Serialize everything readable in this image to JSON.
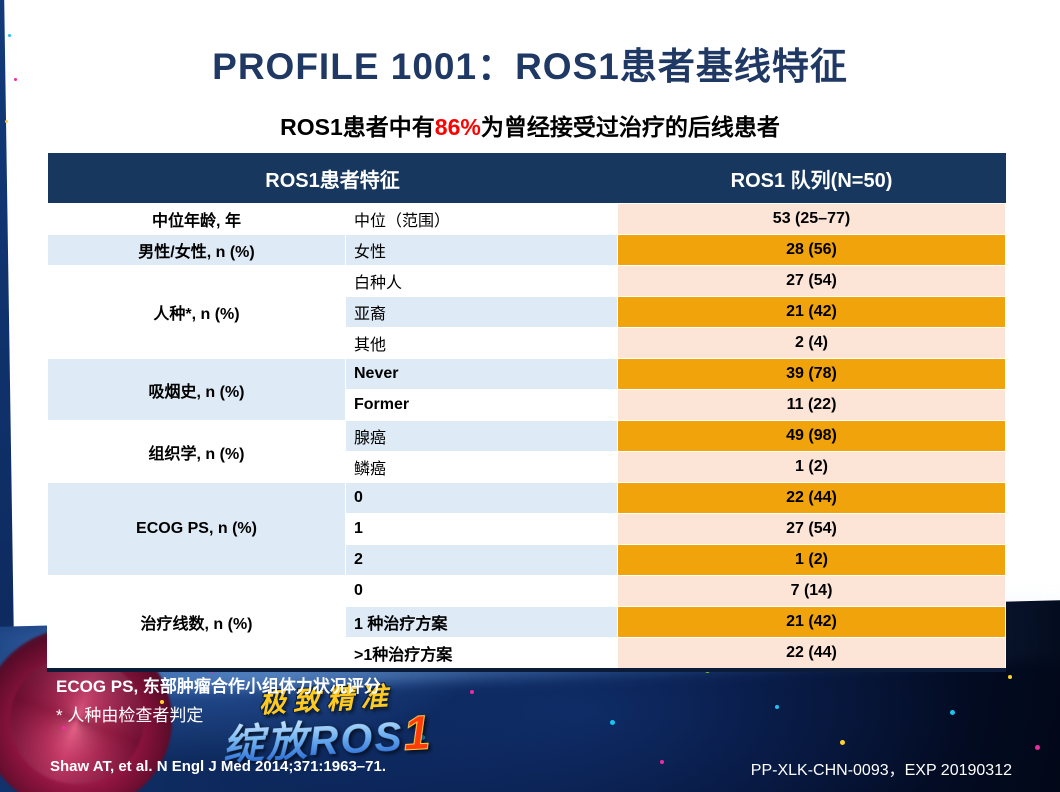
{
  "slide": {
    "title": "PROFILE 1001：ROS1患者基线特征",
    "subtitle": {
      "prefix": "ROS1患者中有",
      "highlight": "86%",
      "suffix": "为曾经接受过治疗的后线患者"
    }
  },
  "table": {
    "header": [
      "ROS1患者特征",
      "ROS1 队列(N=50)"
    ],
    "groups": [
      {
        "category": "中位年龄, 年",
        "rows": [
          {
            "label": "中位（范围）",
            "value": "53 (25–77)",
            "bold": false
          }
        ]
      },
      {
        "category": "男性/女性, n (%)",
        "rows": [
          {
            "label": "女性",
            "value": "28 (56)",
            "bold": false
          }
        ]
      },
      {
        "category": "人种*, n (%)",
        "rows": [
          {
            "label": "白种人",
            "value": "27 (54)",
            "bold": false
          },
          {
            "label": "亚裔",
            "value": "21 (42)",
            "bold": false
          },
          {
            "label": "其他",
            "value": "2 (4)",
            "bold": false
          }
        ]
      },
      {
        "category": "吸烟史, n (%)",
        "rows": [
          {
            "label": "Never",
            "value": "39 (78)",
            "bold": true
          },
          {
            "label": "Former",
            "value": "11 (22)",
            "bold": true
          }
        ]
      },
      {
        "category": "组织学, n (%)",
        "rows": [
          {
            "label": "腺癌",
            "value": "49 (98)",
            "bold": false
          },
          {
            "label": "鳞癌",
            "value": "1 (2)",
            "bold": false
          }
        ]
      },
      {
        "category": "ECOG PS, n (%)",
        "rows": [
          {
            "label": "0",
            "value": "22 (44)",
            "bold": true
          },
          {
            "label": "1",
            "value": "27 (54)",
            "bold": true
          },
          {
            "label": "2",
            "value": "1 (2)",
            "bold": true
          }
        ]
      },
      {
        "category": "治疗线数, n (%)",
        "rows": [
          {
            "label": "0",
            "value": "7 (14)",
            "bold": true
          },
          {
            "label": "1 种治疗方案",
            "value": "21 (42)",
            "bold": true
          },
          {
            "label": ">1种治疗方案",
            "value": "22 (44)",
            "bold": true
          }
        ]
      }
    ]
  },
  "footnotes": {
    "line1": "ECOG PS, 东部肿瘤合作小组体力状况评分",
    "line2": "* 人种由检查者判定"
  },
  "footer": {
    "citation": "Shaw AT, et al. N Engl J Med 2014;371:1963–71.",
    "code": "PP-XLK-CHN-0093，EXP 20190312"
  },
  "logo": {
    "line1": "极致精准",
    "line2": "绽放ROS",
    "line2_accent": "1"
  },
  "colors": {
    "title_navy": "#1F3864",
    "header_bg": "#17375E",
    "highlight_red": "#FF0000",
    "value_gold": "#F0A30A",
    "value_peach": "#FCE4D6",
    "row_blue": "#DEEAF6",
    "band_dark": "#051236",
    "logo_gold": "#FFC91E"
  }
}
